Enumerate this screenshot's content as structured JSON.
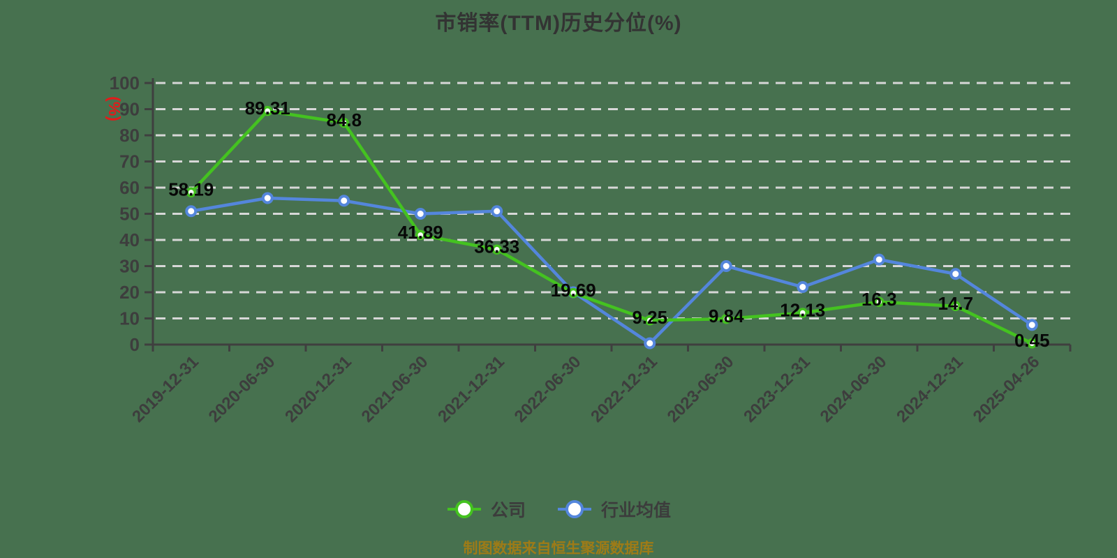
{
  "title": "市销率(TTM)历史分位(%)",
  "footer": "制图数据来自恒生聚源数据库",
  "y_axis_name": "(%)",
  "legend": [
    {
      "label": "公司",
      "color": "#44c220"
    },
    {
      "label": "行业均值",
      "color": "#5486dc"
    }
  ],
  "colors": {
    "background": "#47714f",
    "grid": "#d7d7d7",
    "axis": "#3f3f3f",
    "tick_text": "#3d3d3d",
    "data_label": "#070707",
    "axis_name_red": "#e31a1a",
    "footer_text": "#9e7b17",
    "series_company": "#44c220",
    "series_industry": "#5486dc",
    "marker_fill": "#ffffff"
  },
  "chart_data": {
    "type": "line",
    "title": "市销率(TTM)历史分位(%)",
    "xlabel": "",
    "ylabel": "(%)",
    "ylim": [
      0,
      100
    ],
    "y_ticks": [
      0,
      10,
      20,
      30,
      40,
      50,
      60,
      70,
      80,
      90,
      100
    ],
    "grid": "horizontal dashed",
    "legend_position": "bottom",
    "categories": [
      "2019-12-31",
      "2020-06-30",
      "2020-12-31",
      "2021-06-30",
      "2021-12-31",
      "2022-06-30",
      "2022-12-31",
      "2023-06-30",
      "2023-12-31",
      "2024-06-30",
      "2024-12-31",
      "2025-04-26"
    ],
    "series": [
      {
        "name": "公司",
        "color": "#44c220",
        "values": [
          58.19,
          89.31,
          84.8,
          41.89,
          36.33,
          19.69,
          9.25,
          9.84,
          12.13,
          16.3,
          14.7,
          0.45
        ],
        "value_labels": [
          "58.19",
          "89.31",
          "84.8",
          "41.89",
          "36.33",
          "19.69",
          "9.25",
          "9.84",
          "12.13",
          "16.3",
          "14.7",
          "0.45"
        ],
        "labels_visible": true
      },
      {
        "name": "行业均值",
        "color": "#5486dc",
        "values": [
          51,
          56,
          55,
          50,
          51,
          20,
          0.5,
          30,
          22,
          32.5,
          27,
          7.5
        ],
        "labels_visible": false
      }
    ]
  }
}
